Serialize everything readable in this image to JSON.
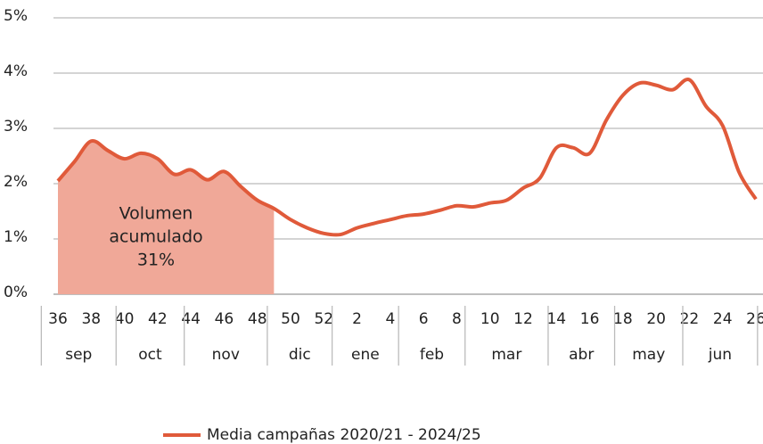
{
  "chart_data": {
    "type": "line",
    "categories": [
      "36",
      null,
      "38",
      null,
      "40",
      null,
      "42",
      null,
      "44",
      null,
      "46",
      null,
      "48",
      null,
      "50",
      null,
      "52",
      null,
      "2",
      null,
      "4",
      null,
      "6",
      null,
      "8",
      null,
      "10",
      null,
      "12",
      null,
      "14",
      null,
      "16",
      null,
      "18",
      null,
      "20",
      null,
      "22",
      null,
      "24",
      null,
      "26"
    ],
    "months": [
      "sep",
      "oct",
      "nov",
      "dic",
      "ene",
      "feb",
      "mar",
      "abr",
      "may",
      "jun"
    ],
    "series": [
      {
        "name": "Media campañas 2020/21 - 2024/25",
        "color": "#e05a3a",
        "values": [
          2.05,
          2.4,
          2.77,
          2.6,
          2.45,
          2.55,
          2.45,
          2.17,
          2.25,
          2.07,
          2.22,
          1.95,
          1.7,
          1.55,
          1.35,
          1.2,
          1.1,
          1.08,
          1.2,
          1.28,
          1.35,
          1.42,
          1.45,
          1.52,
          1.6,
          1.58,
          1.65,
          1.7,
          1.92,
          2.1,
          2.65,
          2.65,
          2.55,
          3.15,
          3.6,
          3.82,
          3.78,
          3.7,
          3.88,
          3.4,
          3.05,
          2.2,
          1.72
        ]
      }
    ],
    "area_color": "#f0a898",
    "annotation": [
      "Volumen",
      "acumulado",
      "31%"
    ],
    "ylim": [
      0,
      5
    ],
    "yticks": [
      {
        "value": 0,
        "label": "0%"
      },
      {
        "value": 1,
        "label": "1%"
      },
      {
        "value": 2,
        "label": "2%"
      },
      {
        "value": 3,
        "label": "3%"
      },
      {
        "value": 4,
        "label": "4%"
      },
      {
        "value": 5,
        "label": "5%"
      }
    ],
    "grid": true,
    "legend": "bottom"
  }
}
